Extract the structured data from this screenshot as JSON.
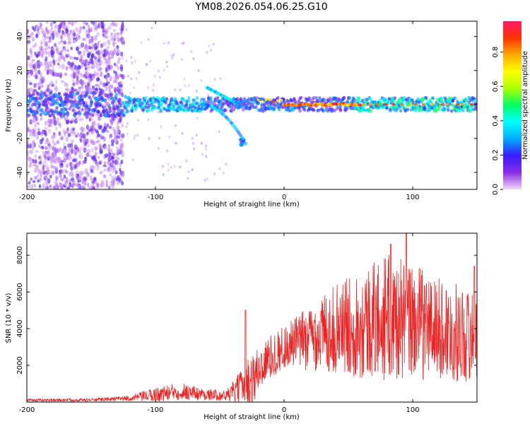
{
  "figure": {
    "title": "YM08.2026.054.06.25.G10"
  },
  "chart_data": [
    {
      "type": "heatmap",
      "xlabel": "Height of straight line (km)",
      "ylabel": "Frequency (Hz)",
      "xlim": [
        -200,
        150
      ],
      "ylim": [
        -50,
        49
      ],
      "xticks": [
        -200,
        -100,
        0,
        100
      ],
      "xtick_labels": [
        "-200",
        "-100",
        "0",
        "100"
      ],
      "yticks": [
        -40,
        -20,
        0,
        20,
        40
      ],
      "ytick_labels": [
        "-40",
        "-20",
        "0",
        "20",
        "40"
      ],
      "colorbar": {
        "label": "Normalized spectral amplitude",
        "range": [
          0,
          0.98
        ],
        "ticks": [
          0.0,
          0.2,
          0.4,
          0.6,
          0.8
        ],
        "tick_labels": [
          "0.0",
          "0.2",
          "0.4",
          "0.6",
          "0.8"
        ],
        "colormap": [
          "#f2d9fb",
          "#8a2be2",
          "#3a1cff",
          "#00aaff",
          "#00ffff",
          "#00ff66",
          "#aaff00",
          "#ffff00",
          "#ffaa00",
          "#ff3300",
          "#ff1a66"
        ]
      },
      "features": [
        {
          "name": "main-band",
          "x": [
            -200,
            150
          ],
          "freq": 0,
          "amp": 0.3
        },
        {
          "name": "strong-band",
          "x": [
            0,
            60
          ],
          "freq": 0,
          "amp": 0.9
        },
        {
          "name": "scatter-region",
          "x": [
            -200,
            -125
          ],
          "freq": [
            -50,
            49
          ],
          "amp": 0.1
        },
        {
          "name": "branch-upper",
          "x": [
            -60,
            -35
          ],
          "freq": [
            10,
            0
          ],
          "amp": 0.35
        },
        {
          "name": "branch-lower",
          "x": [
            -65,
            -30
          ],
          "freq": [
            0,
            -23
          ],
          "amp": 0.3
        }
      ]
    },
    {
      "type": "line",
      "xlabel": "Height of straight line (km)",
      "ylabel": "SNR (10 * v/v)",
      "xlim": [
        -200,
        150
      ],
      "ylim": [
        0,
        9200
      ],
      "xticks": [
        -200,
        -100,
        0,
        100
      ],
      "xtick_labels": [
        "-200",
        "-100",
        "0",
        "100"
      ],
      "yticks": [
        2000,
        4000,
        6000,
        8000
      ],
      "ytick_labels": [
        "2000",
        "4000",
        "6000",
        "8000"
      ],
      "color": "#ee2222",
      "envelope": {
        "x": [
          -200,
          -150,
          -120,
          -100,
          -80,
          -60,
          -45,
          -35,
          -25,
          -15,
          0,
          20,
          40,
          60,
          80,
          100,
          120,
          150
        ],
        "level": [
          100,
          120,
          200,
          400,
          600,
          400,
          350,
          700,
          1200,
          2200,
          3000,
          3500,
          4000,
          4300,
          4600,
          4400,
          4000,
          3500
        ],
        "spread": [
          80,
          80,
          150,
          400,
          500,
          300,
          300,
          900,
          1500,
          1200,
          1200,
          1800,
          2400,
          3000,
          3500,
          3200,
          2800,
          2500
        ]
      },
      "peaks": [
        {
          "x": -30,
          "y": 5000
        },
        {
          "x": 83,
          "y": 8600
        },
        {
          "x": 95,
          "y": 9200
        },
        {
          "x": 148,
          "y": 7400
        }
      ]
    }
  ]
}
